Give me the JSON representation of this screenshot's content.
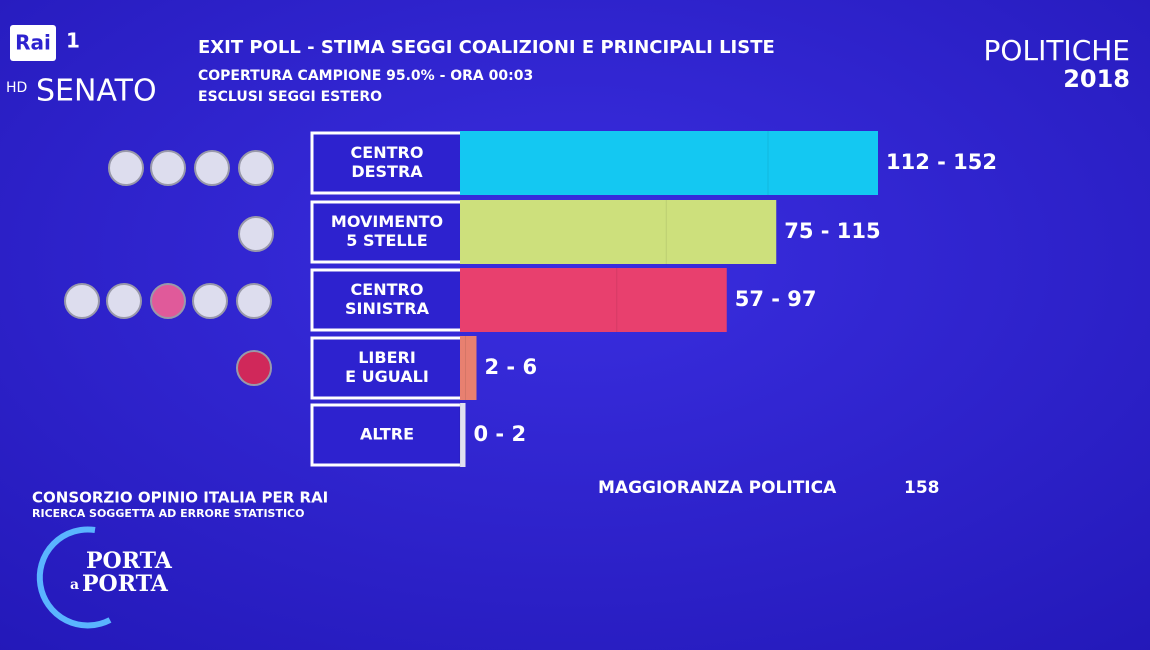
{
  "channel": "Rai",
  "channel_number": "1",
  "hd": "HD",
  "chart_data": {
    "type": "range-bar",
    "title": "EXIT POLL - STIMA SEGGI COALIZIONI E PRINCIPALI LISTE",
    "subtitle": [
      "COPERTURA CAMPIONE 95.0% - ORA 00:03",
      "ESCLUSI SEGGI ESTERO"
    ],
    "chamber": "SENATO",
    "election": [
      "POLITICHE",
      "2018"
    ],
    "categories": [
      [
        "CENTRO",
        "DESTRA"
      ],
      [
        "MOVIMENTO",
        "5 STELLE"
      ],
      [
        "CENTRO",
        "SINISTRA"
      ],
      [
        "LIBERI",
        "E UGUALI"
      ],
      [
        "ALTRE"
      ]
    ],
    "ranges": [
      [
        112,
        152
      ],
      [
        75,
        115
      ],
      [
        57,
        97
      ],
      [
        2,
        6
      ],
      [
        0,
        2
      ]
    ],
    "value_labels": [
      "112 - 152",
      "75 - 115",
      "57 - 97",
      "2 - 6",
      "0 - 2"
    ],
    "colors": [
      "#14c8f2",
      "#cde07c",
      "#e8406e",
      "#e88070",
      "#e0e0f0"
    ],
    "xlim": [
      0,
      200
    ],
    "majority": {
      "label": "MAGGIORANZA POLITICA",
      "value": 158
    },
    "source": [
      "CONSORZIO OPINIO ITALIA PER RAI",
      "RICERCA SOGGETTA AD ERRORE STATISTICO"
    ]
  },
  "logo": [
    "PORTA",
    "a",
    "PORTA"
  ]
}
